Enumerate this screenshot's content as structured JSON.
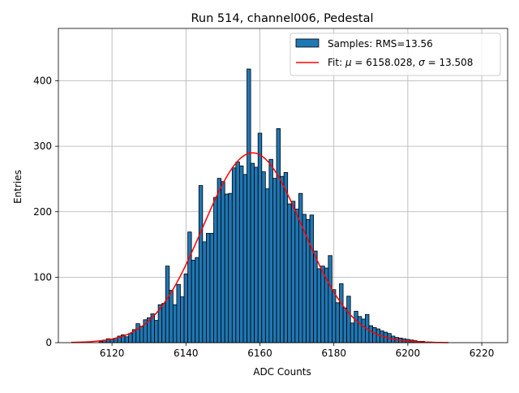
{
  "chart_data": {
    "type": "bar",
    "title": "Run 514, channel006, Pedestal",
    "xlabel": "ADC Counts",
    "ylabel": "Entries",
    "xlim": [
      6105.5,
      6227
    ],
    "ylim": [
      0,
      480
    ],
    "xticks": [
      6120,
      6140,
      6160,
      6180,
      6200,
      6220
    ],
    "yticks": [
      0,
      100,
      200,
      300,
      400
    ],
    "grid": true,
    "legend": {
      "placement": "top-right"
    },
    "histogram": {
      "name": "Samples: RMS=13.56",
      "color": "#1f77b4",
      "edgecolor": "#000000",
      "bins": [
        {
          "x": 6117,
          "y": 2
        },
        {
          "x": 6118,
          "y": 4
        },
        {
          "x": 6119,
          "y": 6
        },
        {
          "x": 6120,
          "y": 5
        },
        {
          "x": 6121,
          "y": 7
        },
        {
          "x": 6122,
          "y": 10
        },
        {
          "x": 6123,
          "y": 12
        },
        {
          "x": 6124,
          "y": 9
        },
        {
          "x": 6125,
          "y": 14
        },
        {
          "x": 6126,
          "y": 20
        },
        {
          "x": 6127,
          "y": 29
        },
        {
          "x": 6128,
          "y": 25
        },
        {
          "x": 6129,
          "y": 35
        },
        {
          "x": 6130,
          "y": 38
        },
        {
          "x": 6131,
          "y": 44
        },
        {
          "x": 6132,
          "y": 34
        },
        {
          "x": 6133,
          "y": 58
        },
        {
          "x": 6134,
          "y": 60
        },
        {
          "x": 6135,
          "y": 117
        },
        {
          "x": 6136,
          "y": 80
        },
        {
          "x": 6137,
          "y": 58
        },
        {
          "x": 6138,
          "y": 89
        },
        {
          "x": 6139,
          "y": 70
        },
        {
          "x": 6140,
          "y": 105
        },
        {
          "x": 6141,
          "y": 169
        },
        {
          "x": 6142,
          "y": 126
        },
        {
          "x": 6143,
          "y": 130
        },
        {
          "x": 6144,
          "y": 240
        },
        {
          "x": 6145,
          "y": 154
        },
        {
          "x": 6146,
          "y": 167
        },
        {
          "x": 6147,
          "y": 167
        },
        {
          "x": 6148,
          "y": 222
        },
        {
          "x": 6149,
          "y": 251
        },
        {
          "x": 6150,
          "y": 246
        },
        {
          "x": 6151,
          "y": 227
        },
        {
          "x": 6152,
          "y": 228
        },
        {
          "x": 6153,
          "y": 267
        },
        {
          "x": 6154,
          "y": 276
        },
        {
          "x": 6155,
          "y": 270
        },
        {
          "x": 6156,
          "y": 257
        },
        {
          "x": 6157,
          "y": 418
        },
        {
          "x": 6158,
          "y": 274
        },
        {
          "x": 6159,
          "y": 268
        },
        {
          "x": 6160,
          "y": 320
        },
        {
          "x": 6161,
          "y": 261
        },
        {
          "x": 6162,
          "y": 235
        },
        {
          "x": 6163,
          "y": 280
        },
        {
          "x": 6164,
          "y": 251
        },
        {
          "x": 6165,
          "y": 327
        },
        {
          "x": 6166,
          "y": 254
        },
        {
          "x": 6167,
          "y": 260
        },
        {
          "x": 6168,
          "y": 212
        },
        {
          "x": 6169,
          "y": 216
        },
        {
          "x": 6170,
          "y": 204
        },
        {
          "x": 6171,
          "y": 228
        },
        {
          "x": 6172,
          "y": 196
        },
        {
          "x": 6173,
          "y": 188
        },
        {
          "x": 6174,
          "y": 195
        },
        {
          "x": 6175,
          "y": 140
        },
        {
          "x": 6176,
          "y": 113
        },
        {
          "x": 6177,
          "y": 117
        },
        {
          "x": 6178,
          "y": 114
        },
        {
          "x": 6179,
          "y": 133
        },
        {
          "x": 6180,
          "y": 81
        },
        {
          "x": 6181,
          "y": 61
        },
        {
          "x": 6182,
          "y": 90
        },
        {
          "x": 6183,
          "y": 53
        },
        {
          "x": 6184,
          "y": 71
        },
        {
          "x": 6185,
          "y": 30
        },
        {
          "x": 6186,
          "y": 48
        },
        {
          "x": 6187,
          "y": 40
        },
        {
          "x": 6188,
          "y": 36
        },
        {
          "x": 6189,
          "y": 43
        },
        {
          "x": 6190,
          "y": 26
        },
        {
          "x": 6191,
          "y": 23
        },
        {
          "x": 6192,
          "y": 21
        },
        {
          "x": 6193,
          "y": 18
        },
        {
          "x": 6194,
          "y": 16
        },
        {
          "x": 6195,
          "y": 14
        },
        {
          "x": 6196,
          "y": 10
        },
        {
          "x": 6197,
          "y": 8
        },
        {
          "x": 6198,
          "y": 7
        },
        {
          "x": 6199,
          "y": 6
        },
        {
          "x": 6200,
          "y": 5
        },
        {
          "x": 6201,
          "y": 4
        },
        {
          "x": 6202,
          "y": 3
        },
        {
          "x": 6203,
          "y": 2
        },
        {
          "x": 6204,
          "y": 2
        },
        {
          "x": 6205,
          "y": 1
        },
        {
          "x": 6206,
          "y": 1
        }
      ]
    },
    "fit": {
      "name": "Fit: μ = 6158.028, σ = 13.508",
      "legend_prefix": "Fit: ",
      "legend_mu": "μ",
      "legend_mu_rest": " = 6158.028, ",
      "legend_sigma": "σ",
      "legend_sigma_rest": " = 13.508",
      "type": "gaussian",
      "mu": 6158.028,
      "sigma": 13.508,
      "amplitude": 290,
      "x_range": [
        6109,
        6211
      ],
      "color": "#ff0000"
    }
  }
}
